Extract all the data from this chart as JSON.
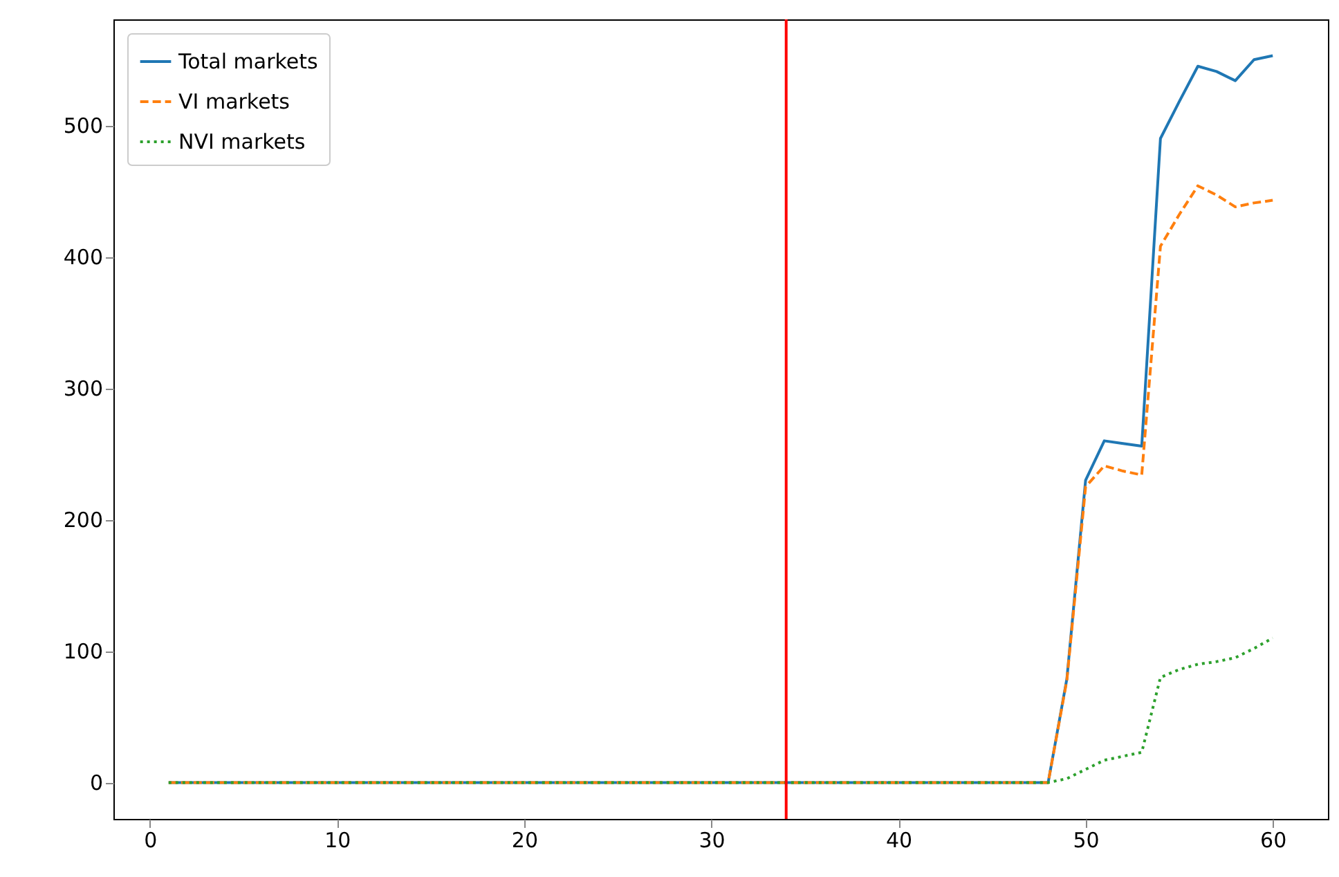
{
  "chart_data": {
    "type": "line",
    "x": [
      1,
      2,
      3,
      4,
      5,
      6,
      7,
      8,
      9,
      10,
      11,
      12,
      13,
      14,
      15,
      16,
      17,
      18,
      19,
      20,
      21,
      22,
      23,
      24,
      25,
      26,
      27,
      28,
      29,
      30,
      31,
      32,
      33,
      34,
      35,
      36,
      37,
      38,
      39,
      40,
      41,
      42,
      43,
      44,
      45,
      46,
      47,
      48,
      49,
      50,
      51,
      52,
      53,
      54,
      55,
      56,
      57,
      58,
      59,
      60
    ],
    "series": [
      {
        "name": "Total markets",
        "color": "#1f77b4",
        "line_style": "solid",
        "values": [
          0,
          0,
          0,
          0,
          0,
          0,
          0,
          0,
          0,
          0,
          0,
          0,
          0,
          0,
          0,
          0,
          0,
          0,
          0,
          0,
          0,
          0,
          0,
          0,
          0,
          0,
          0,
          0,
          0,
          0,
          0,
          0,
          0,
          0,
          0,
          0,
          0,
          0,
          0,
          0,
          0,
          0,
          0,
          0,
          0,
          0,
          0,
          0,
          79,
          230,
          260,
          258,
          256,
          490,
          518,
          545,
          541,
          534,
          550,
          553
        ]
      },
      {
        "name": "VI markets",
        "color": "#ff7f0e",
        "line_style": "dashed",
        "values": [
          0,
          0,
          0,
          0,
          0,
          0,
          0,
          0,
          0,
          0,
          0,
          0,
          0,
          0,
          0,
          0,
          0,
          0,
          0,
          0,
          0,
          0,
          0,
          0,
          0,
          0,
          0,
          0,
          0,
          0,
          0,
          0,
          0,
          0,
          0,
          0,
          0,
          0,
          0,
          0,
          0,
          0,
          0,
          0,
          0,
          0,
          0,
          0,
          78,
          225,
          241,
          237,
          234,
          408,
          432,
          454,
          447,
          438,
          441,
          443
        ]
      },
      {
        "name": "NVI markets",
        "color": "#2ca02c",
        "line_style": "dotted",
        "values": [
          0,
          0,
          0,
          0,
          0,
          0,
          0,
          0,
          0,
          0,
          0,
          0,
          0,
          0,
          0,
          0,
          0,
          0,
          0,
          0,
          0,
          0,
          0,
          0,
          0,
          0,
          0,
          0,
          0,
          0,
          0,
          0,
          0,
          0,
          0,
          0,
          0,
          0,
          0,
          0,
          0,
          0,
          0,
          0,
          0,
          0,
          0,
          0,
          3,
          10,
          17,
          20,
          23,
          80,
          86,
          90,
          92,
          95,
          102,
          110
        ]
      }
    ],
    "xlim": [
      -1.95,
      62.95
    ],
    "xticks": [
      0,
      10,
      20,
      30,
      40,
      50,
      60
    ],
    "ylim": [
      -27.65,
      580.65
    ],
    "yticks": [
      0,
      100,
      200,
      300,
      400,
      500
    ],
    "ref_lines": [
      {
        "axis": "x",
        "value": 34,
        "color": "#ff0000"
      }
    ],
    "legend": "top left",
    "grid": false
  }
}
